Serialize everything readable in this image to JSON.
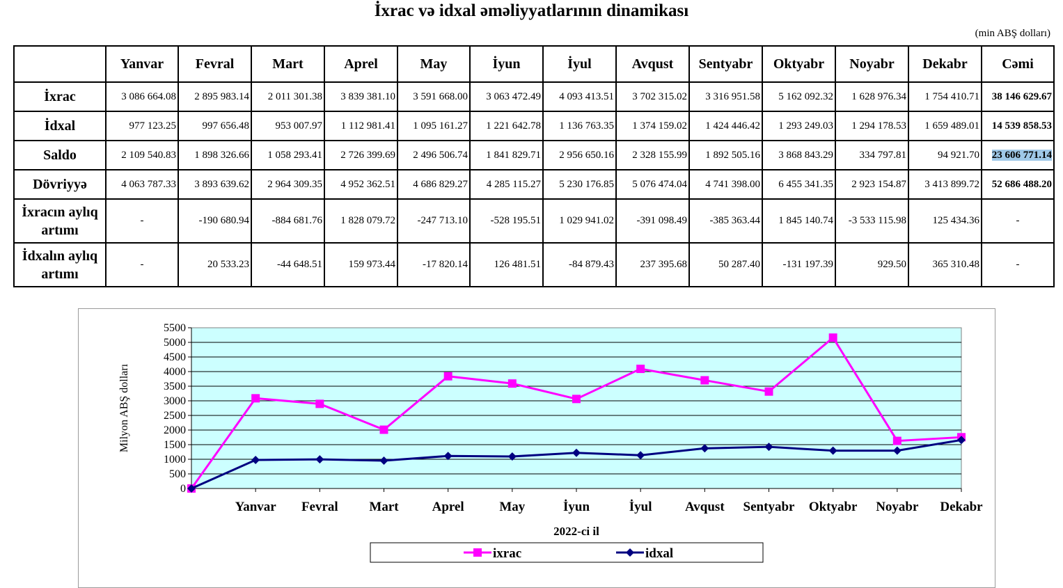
{
  "title": "İxrac və idxal əməliyyatlarının dinamikası",
  "unit_note": "(min ABŞ dolları)",
  "table": {
    "corner": "",
    "headers": [
      "Yanvar",
      "Fevral",
      "Mart",
      "Aprel",
      "May",
      "İyun",
      "İyul",
      "Avqust",
      "Sentyabr",
      "Oktyabr",
      "Noyabr",
      "Dekabr",
      "Cəmi"
    ],
    "rows": [
      {
        "label": "İxrac",
        "cells": [
          "3 086 664.08",
          "2 895 983.14",
          "2 011 301.38",
          "3 839 381.10",
          "3 591 668.00",
          "3 063 472.49",
          "4 093 413.51",
          "3 702 315.02",
          "3 316 951.58",
          "5 162 092.32",
          "1 628 976.34",
          "1 754 410.71",
          "38 146 629.67"
        ]
      },
      {
        "label": "İdxal",
        "cells": [
          "977 123.25",
          "997 656.48",
          "953 007.97",
          "1 112 981.41",
          "1 095 161.27",
          "1 221 642.78",
          "1 136 763.35",
          "1 374 159.02",
          "1 424 446.42",
          "1 293 249.03",
          "1 294 178.53",
          "1 659 489.01",
          "14 539 858.53"
        ]
      },
      {
        "label": "Saldo",
        "cells": [
          "2 109 540.83",
          "1 898 326.66",
          "1 058 293.41",
          "2 726 399.69",
          "2 496 506.74",
          "1 841 829.71",
          "2 956 650.16",
          "2 328 155.99",
          "1 892 505.16",
          "3 868 843.29",
          "334 797.81",
          "94 921.70",
          "23 606 771.14"
        ]
      },
      {
        "label": "Dövriyyə",
        "cells": [
          "4 063 787.33",
          "3 893 639.62",
          "2 964 309.35",
          "4 952 362.51",
          "4 686 829.27",
          "4 285 115.27",
          "5 230 176.85",
          "5 076 474.04",
          "4 741 398.00",
          "6 455 341.35",
          "2 923 154.87",
          "3 413 899.72",
          "52 686 488.20"
        ]
      },
      {
        "label": "İxracın aylıq artımı",
        "cells": [
          "-",
          "-190 680.94",
          "-884 681.76",
          "1 828 079.72",
          "-247 713.10",
          "-528 195.51",
          "1 029 941.02",
          "-391 098.49",
          "-385 363.44",
          "1 845 140.74",
          "-3 533 115.98",
          "125 434.36",
          "-"
        ]
      },
      {
        "label": "İdxalın aylıq artımı",
        "cells": [
          "-",
          "20 533.23",
          "-44 648.51",
          "159 973.44",
          "-17 820.14",
          "126 481.51",
          "-84 879.43",
          "237 395.68",
          "50 287.40",
          "-131 197.39",
          "929.50",
          "365 310.48",
          "-"
        ]
      }
    ]
  },
  "chart_data": {
    "type": "line",
    "categories": [
      "",
      "Yanvar",
      "Fevral",
      "Mart",
      "Aprel",
      "May",
      "İyun",
      "İyul",
      "Avqust",
      "Sentyabr",
      "Oktyabr",
      "Noyabr",
      "Dekabr"
    ],
    "series": [
      {
        "name": "ixrac",
        "color": "#ff00ff",
        "marker": "square",
        "values": [
          0,
          3086.66,
          2895.98,
          2011.3,
          3839.38,
          3591.67,
          3063.47,
          4093.41,
          3702.32,
          3316.95,
          5162.09,
          1628.98,
          1754.41
        ]
      },
      {
        "name": "idxal",
        "color": "#000080",
        "marker": "diamond",
        "values": [
          0,
          977.12,
          997.66,
          953.01,
          1112.98,
          1095.16,
          1221.64,
          1136.76,
          1374.16,
          1424.45,
          1293.25,
          1294.18,
          1659.49
        ]
      }
    ],
    "xlabel": "2022-ci il",
    "ylabel": "Milyon ABŞ dolları",
    "ylim": [
      0,
      5500
    ],
    "yticks": [
      "0",
      "500",
      "1000",
      "1500",
      "2000",
      "2500",
      "3000",
      "3500",
      "4000",
      "4500",
      "5000",
      "5500"
    ],
    "grid": true,
    "plot_background": "#ccffff",
    "legend": "bottom"
  }
}
